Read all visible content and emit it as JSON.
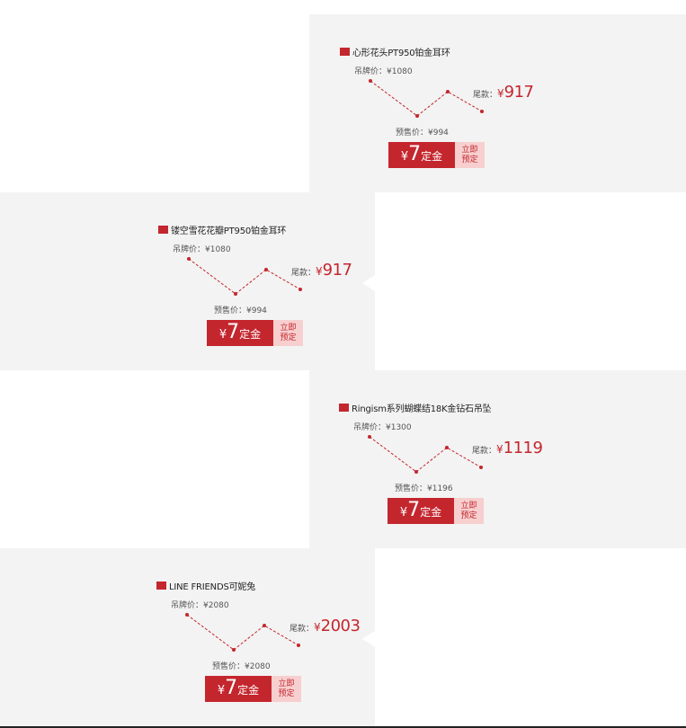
{
  "theme": {
    "accent": "#c4262e",
    "panel_bg": "#f3f3f3",
    "badge_bg": "#f7cfcf"
  },
  "products": [
    {
      "title": "心形花头PT950铂金耳环",
      "tag_price": "吊牌价：¥1080",
      "tail_label": "尾款：",
      "tail_currency": "¥",
      "tail_value": "917",
      "presale_price": "预售价：¥994",
      "deposit_currency": "¥",
      "deposit_value": "7",
      "deposit_text": "定金",
      "reserve_line1": "立即",
      "reserve_line2": "预定"
    },
    {
      "title": "镂空雪花花瓣PT950铂金耳环",
      "tag_price": "吊牌价：¥1080",
      "tail_label": "尾款：",
      "tail_currency": "¥",
      "tail_value": "917",
      "presale_price": "预售价：¥994",
      "deposit_currency": "¥",
      "deposit_value": "7",
      "deposit_text": "定金",
      "reserve_line1": "立即",
      "reserve_line2": "预定"
    },
    {
      "title": "Ringism系列蝴蝶结18K金钻石吊坠",
      "tag_price": "吊牌价：¥1300",
      "tail_label": "尾款：",
      "tail_currency": "¥",
      "tail_value": "1119",
      "presale_price": "预售价：¥1196",
      "deposit_currency": "¥",
      "deposit_value": "7",
      "deposit_text": "定金",
      "reserve_line1": "立即",
      "reserve_line2": "预定"
    },
    {
      "title": "LINE FRIENDS可妮兔",
      "tag_price": "吊牌价：¥2080",
      "tail_label": "尾款：",
      "tail_currency": "¥",
      "tail_value": "2003",
      "presale_price": "预售价：¥2080",
      "deposit_currency": "¥",
      "deposit_value": "7",
      "deposit_text": "定金",
      "reserve_line1": "立即",
      "reserve_line2": "预定"
    }
  ]
}
